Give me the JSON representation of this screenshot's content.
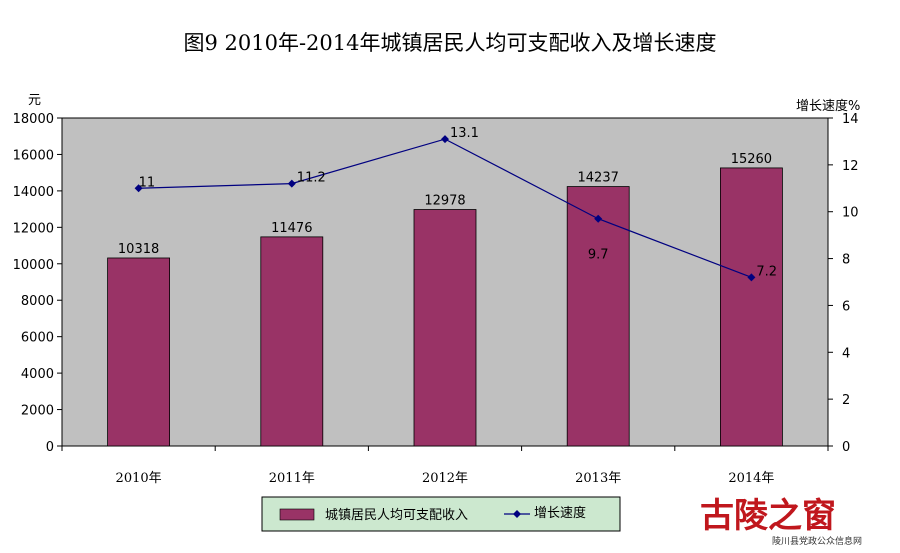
{
  "page": {
    "title": "图9  2010年-2014年城镇居民人均可支配收入及增长速度",
    "watermark": {
      "big": "古陵之窗",
      "small": "陵川县党政公众信息网"
    }
  },
  "chart_data": {
    "type": "bar+line",
    "categories": [
      "2010年",
      "2011年",
      "2012年",
      "2013年",
      "2014年"
    ],
    "series": [
      {
        "name": "城镇居民人均可支配收入",
        "type": "bar",
        "axis": "left",
        "values": [
          10318,
          11476,
          12978,
          14237,
          15260
        ],
        "color": "#993366"
      },
      {
        "name": "增长速度",
        "type": "line",
        "axis": "right",
        "values": [
          11,
          11.2,
          13.1,
          9.7,
          7.2
        ],
        "color": "#000080"
      }
    ],
    "data_labels": {
      "bars": [
        "10318",
        "11476",
        "12978",
        "14237",
        "15260"
      ],
      "line": [
        "11",
        "11.2",
        "13.1",
        "9.7",
        "7.2"
      ]
    },
    "y_left": {
      "unit": "元",
      "min": 0,
      "max": 18000,
      "step": 2000,
      "ticks": [
        "0",
        "2000",
        "4000",
        "6000",
        "8000",
        "10000",
        "12000",
        "14000",
        "16000",
        "18000"
      ]
    },
    "y_right": {
      "unit": "增长速度%",
      "min": 0,
      "max": 14,
      "step": 2,
      "ticks": [
        "0",
        "2",
        "4",
        "6",
        "8",
        "10",
        "12",
        "14"
      ]
    },
    "plot_background": "#c0c0c0",
    "grid": false,
    "legend_position": "bottom-center",
    "legend_background": "#cce8cf"
  }
}
